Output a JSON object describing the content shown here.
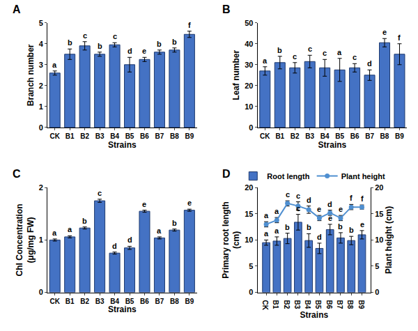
{
  "chart_data": [
    {
      "type": "bar",
      "title": "A",
      "x_label": "Strains",
      "y_label": "Branch number",
      "categories": [
        "CK",
        "B1",
        "B2",
        "B3",
        "B4",
        "B5",
        "B6",
        "B7",
        "B8",
        "B9"
      ],
      "values": [
        2.6,
        3.5,
        3.9,
        3.5,
        3.95,
        3.0,
        3.25,
        3.6,
        3.7,
        4.45
      ],
      "errors": [
        0.1,
        0.25,
        0.2,
        0.1,
        0.1,
        0.35,
        0.1,
        0.1,
        0.1,
        0.15
      ],
      "annotations": [
        "a",
        "b",
        "c",
        "b",
        "c",
        "d",
        "e",
        "b",
        "b",
        "f"
      ],
      "color": "#4472c4",
      "ylim": [
        0,
        5
      ],
      "yticks": [
        0,
        1,
        2,
        3,
        4,
        5
      ],
      "grid": false
    },
    {
      "type": "bar",
      "title": "B",
      "x_label": "Strains",
      "y_label": "Leaf number",
      "categories": [
        "CK",
        "B1",
        "B2",
        "B3",
        "B4",
        "B5",
        "B6",
        "B7",
        "B8",
        "B9"
      ],
      "values": [
        27,
        31,
        28.5,
        31.5,
        28.5,
        27.5,
        28.5,
        25,
        40.5,
        35
      ],
      "errors": [
        2,
        3,
        2.5,
        3,
        4,
        5.5,
        2,
        2.5,
        2,
        5
      ],
      "annotations": [
        "a",
        "b",
        "c",
        "c",
        "c",
        "a",
        "c",
        "d",
        "e",
        "f"
      ],
      "color": "#4472c4",
      "ylim": [
        0,
        50
      ],
      "yticks": [
        0,
        10,
        20,
        30,
        40,
        50
      ],
      "grid": false
    },
    {
      "type": "bar",
      "title": "C",
      "x_label": "Strains",
      "y_label": "Chl Concentration (μg/mg FW)",
      "categories": [
        "CK",
        "B1",
        "B2",
        "B3",
        "B4",
        "B5",
        "B6",
        "B7",
        "B8",
        "B9"
      ],
      "values": [
        1.0,
        1.06,
        1.23,
        1.75,
        0.75,
        0.85,
        1.55,
        1.04,
        1.19,
        1.57
      ],
      "errors": [
        0.02,
        0.02,
        0.02,
        0.03,
        0.02,
        0.03,
        0.02,
        0.02,
        0.02,
        0.02
      ],
      "annotations": [
        "a",
        "a",
        "b",
        "c",
        "d",
        "d",
        "e",
        "a",
        "b",
        "e"
      ],
      "color": "#4472c4",
      "ylim": [
        0,
        2
      ],
      "yticks": [
        0,
        1,
        2
      ],
      "grid": false
    },
    {
      "type": "bar",
      "title": "D",
      "x_label": "Strains",
      "y_label": "Primary root length (cm)",
      "y2_label": "Plant height (cm)",
      "categories": [
        "CK",
        "B1",
        "B2",
        "B3",
        "B4",
        "B5",
        "B6",
        "B7",
        "B8",
        "B9"
      ],
      "series": [
        {
          "name": "Root length",
          "type": "bar",
          "color": "#4472c4",
          "values": [
            9.5,
            9.8,
            10.3,
            13.4,
            9.9,
            8.4,
            12.0,
            10.4,
            9.9,
            11.0
          ],
          "errors": [
            0.5,
            0.8,
            1.0,
            1.5,
            1.3,
            1.0,
            1.0,
            1.0,
            0.8,
            0.8
          ],
          "annotations": [
            "a",
            "a",
            "b",
            "c",
            "b",
            "d",
            "e",
            "b",
            "b",
            "e"
          ]
        },
        {
          "name": "Plant height",
          "type": "line",
          "axis": "y2",
          "marker": "circle",
          "color": "#4f8fd0",
          "values": [
            13,
            13.8,
            17,
            16.5,
            15.8,
            14.2,
            15.2,
            14.2,
            16.3,
            16.3
          ],
          "errors": [
            0.5,
            0.5,
            0.5,
            0.8,
            0.7,
            0.5,
            0.5,
            0.5,
            0.5,
            0.4
          ],
          "annotations": [
            "a",
            "a",
            "c",
            "c",
            "d",
            "e",
            "d",
            "e",
            "f",
            "f"
          ]
        }
      ],
      "ylim": [
        0,
        20
      ],
      "yticks": [
        0,
        5,
        10,
        15,
        20
      ],
      "y2lim": [
        0,
        20
      ],
      "y2ticks": [
        0,
        5,
        10,
        15,
        20
      ],
      "legend": "top",
      "grid": false
    }
  ]
}
